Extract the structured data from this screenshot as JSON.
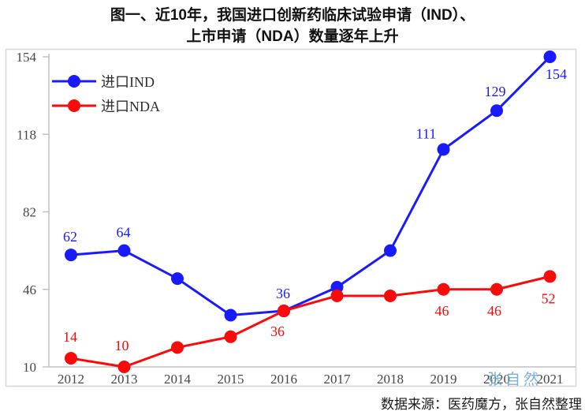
{
  "figure": {
    "title_line1": "图一、近10年，我国进口创新药临床试验申请（IND）、",
    "title_line2": "上市申请（NDA）数量逐年上升",
    "watermark": "张自然",
    "source": "数据来源：医药魔方，张自然整理"
  },
  "chart_data": {
    "type": "line",
    "title": "图一、近10年，我国进口创新药临床试验申请（IND）、上市申请（NDA）数量逐年上升",
    "categories": [
      "2012",
      "2013",
      "2014",
      "2015",
      "2016",
      "2017",
      "2018",
      "2019",
      "2020",
      "2021"
    ],
    "y_ticks": [
      10,
      46,
      82,
      118,
      154
    ],
    "ylim": [
      10,
      154
    ],
    "grid": false,
    "legend_position": "top-left",
    "axis_color": "#c2c2c2",
    "frame_color": "#d6d6d6",
    "tick_label_color": "#474747",
    "legend_text_color": "#2e2e2e",
    "series": [
      {
        "name": "进口IND",
        "color": "#1a1aff",
        "values": [
          62,
          64,
          51,
          34,
          36,
          47,
          64,
          111,
          129,
          154
        ],
        "data_labels": [
          {
            "i": 0,
            "text": "62",
            "dx": -1,
            "dy": -17
          },
          {
            "i": 1,
            "text": "64",
            "dx": -1,
            "dy": -17
          },
          {
            "i": 4,
            "text": "36",
            "dx": -1,
            "dy": -16
          },
          {
            "i": 7,
            "text": "111",
            "dx": -22,
            "dy": -14
          },
          {
            "i": 8,
            "text": "129",
            "dx": -2,
            "dy": -18
          },
          {
            "i": 9,
            "text": "154",
            "dx": 8,
            "dy": 28
          }
        ]
      },
      {
        "name": "进口NDA",
        "color": "#fa0a0a",
        "values": [
          14,
          10,
          19,
          24,
          36,
          43,
          43,
          46,
          46,
          52
        ],
        "data_labels": [
          {
            "i": 0,
            "text": "14",
            "dx": -1,
            "dy": -21
          },
          {
            "i": 1,
            "text": "10",
            "dx": -3,
            "dy": -21
          },
          {
            "i": 4,
            "text": "36",
            "dx": -8,
            "dy": 32
          },
          {
            "i": 7,
            "text": "46",
            "dx": -2,
            "dy": 33
          },
          {
            "i": 8,
            "text": "46",
            "dx": -3,
            "dy": 33
          },
          {
            "i": 9,
            "text": "52",
            "dx": -2,
            "dy": 34
          }
        ]
      }
    ]
  }
}
